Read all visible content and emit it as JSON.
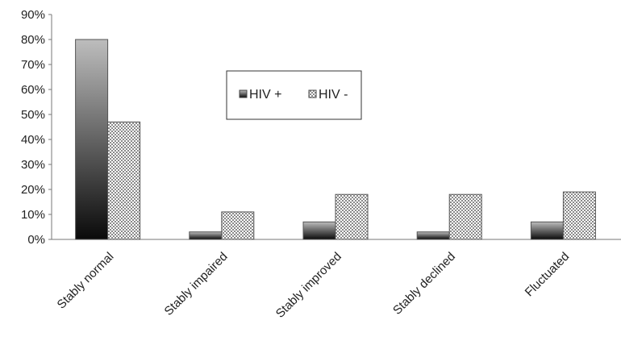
{
  "chart_data": {
    "type": "bar",
    "categories": [
      "Stably normal",
      "Stably impaired",
      "Stably improved",
      "Stably declined",
      "Fluctuated"
    ],
    "series": [
      {
        "name": "HIV +",
        "values": [
          80,
          3,
          7,
          3,
          7
        ]
      },
      {
        "name": "HIV -",
        "values": [
          47,
          11,
          18,
          18,
          19
        ]
      }
    ],
    "ylim": [
      0,
      90
    ],
    "yticks": [
      "0%",
      "10%",
      "20%",
      "30%",
      "40%",
      "50%",
      "60%",
      "70%",
      "80%",
      "90%"
    ],
    "legend": "inside-top-center",
    "grid": false
  }
}
